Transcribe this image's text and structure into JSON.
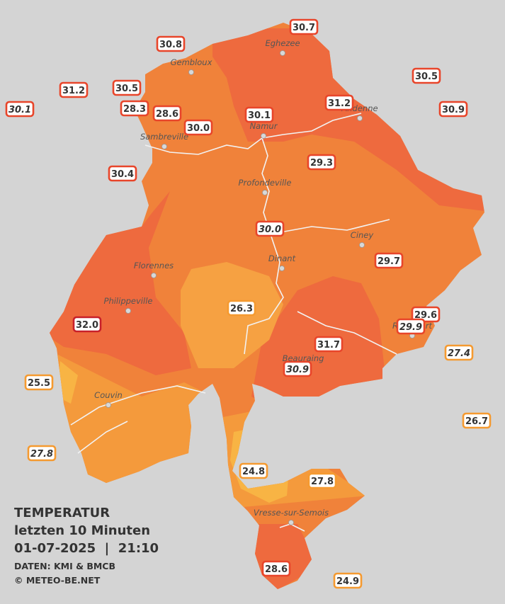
{
  "legend": {
    "title": "TEMPERATUR",
    "subtitle": "letzten 10 Minuten",
    "datetime": "01-07-2025  |  21:10",
    "source": "DATEN: KMI & BMCB",
    "copyright": "© METEO-BE.NET"
  },
  "cities": [
    "Eghezee",
    "Gembloux",
    "Andenne",
    "Namur",
    "Sambreville",
    "Profondeville",
    "Ciney",
    "Dinant",
    "Florennes",
    "Philippeville",
    "Rochefort",
    "Beauraing",
    "Couvin",
    "Vresse-sur-Semois"
  ],
  "stations": [
    {
      "label": "30.7",
      "italic": false,
      "color": "#e8452a"
    },
    {
      "label": "30.8",
      "italic": false,
      "color": "#e8452a"
    },
    {
      "label": "30.5",
      "italic": false,
      "color": "#e8452a"
    },
    {
      "label": "31.2",
      "italic": false,
      "color": "#e8452a"
    },
    {
      "label": "30.5",
      "italic": false,
      "color": "#e8452a"
    },
    {
      "label": "31.2",
      "italic": false,
      "color": "#e8452a"
    },
    {
      "label": "30.1",
      "italic": true,
      "color": "#e8452a"
    },
    {
      "label": "28.3",
      "italic": false,
      "color": "#e8452a"
    },
    {
      "label": "28.6",
      "italic": false,
      "color": "#e8452a"
    },
    {
      "label": "30.1",
      "italic": false,
      "color": "#e8452a"
    },
    {
      "label": "30.9",
      "italic": false,
      "color": "#e8452a"
    },
    {
      "label": "30.0",
      "italic": false,
      "color": "#e8452a"
    },
    {
      "label": "30.4",
      "italic": false,
      "color": "#e8452a"
    },
    {
      "label": "29.3",
      "italic": false,
      "color": "#e8452a"
    },
    {
      "label": "30.0",
      "italic": true,
      "color": "#e8452a"
    },
    {
      "label": "29.7",
      "italic": false,
      "color": "#e8452a"
    },
    {
      "label": "26.3",
      "italic": false,
      "color": "#f59a30"
    },
    {
      "label": "29.6",
      "italic": false,
      "color": "#e8452a"
    },
    {
      "label": "29.9",
      "italic": true,
      "color": "#e8452a"
    },
    {
      "label": "32.0",
      "italic": false,
      "color": "#c8202a"
    },
    {
      "label": "31.7",
      "italic": false,
      "color": "#e8452a"
    },
    {
      "label": "27.4",
      "italic": true,
      "color": "#f59a30"
    },
    {
      "label": "30.9",
      "italic": true,
      "color": "#e8452a"
    },
    {
      "label": "25.5",
      "italic": false,
      "color": "#f59a30"
    },
    {
      "label": "26.7",
      "italic": false,
      "color": "#f59a30"
    },
    {
      "label": "27.8",
      "italic": true,
      "color": "#f59a30"
    },
    {
      "label": "24.8",
      "italic": false,
      "color": "#f59a30"
    },
    {
      "label": "27.8",
      "italic": false,
      "color": "#f59a30"
    },
    {
      "label": "28.6",
      "italic": false,
      "color": "#e8452a"
    },
    {
      "label": "24.9",
      "italic": false,
      "color": "#f59a30"
    }
  ]
}
